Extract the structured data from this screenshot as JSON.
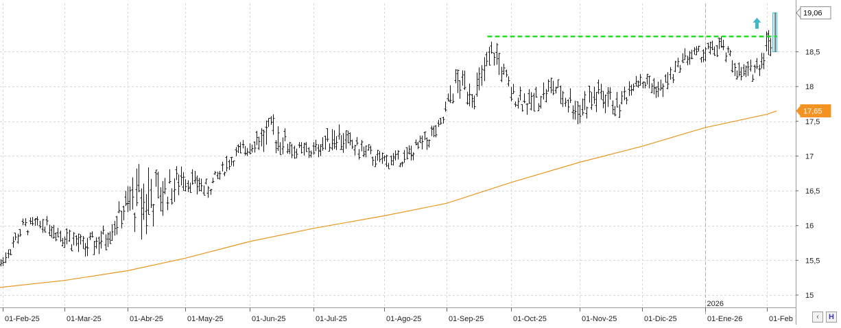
{
  "chart_data": {
    "type": "bar",
    "subtype": "ohlc",
    "ylim": [
      14.84,
      19.22
    ],
    "y_ticks": [
      "15",
      "15,5",
      "16",
      "16,5",
      "17",
      "17,5",
      "18",
      "18,5"
    ],
    "y_tick_values": [
      15,
      15.5,
      16,
      16.5,
      17,
      17.5,
      18,
      18.5
    ],
    "x_labels": [
      "01-Feb-25",
      "01-Mar-25",
      "01-Abr-25",
      "01-May-25",
      "01-Jun-25",
      "01-Jul-25",
      "01-Ago-25",
      "01-Sep-25",
      "01-Oct-25",
      "01-Nov-25",
      "01-Dic-25",
      "01-Ene-26",
      "01-Feb"
    ],
    "x_label_dates": [
      "2025-02-01",
      "2025-03-01",
      "2025-04-01",
      "2025-05-01",
      "2025-06-01",
      "2025-07-01",
      "2025-08-01",
      "2025-09-01",
      "2025-10-01",
      "2025-11-01",
      "2025-12-01",
      "2026-01-01",
      "2026-02-01"
    ],
    "year_marker": {
      "label": "2026",
      "date": "2026-01-01"
    },
    "grid": true,
    "price_series": [
      {
        "date": "2025-01-31",
        "low": 15.35,
        "high": 15.55
      },
      {
        "date": "2025-02-10",
        "low": 15.85,
        "high": 16.1
      },
      {
        "date": "2025-02-20",
        "low": 15.9,
        "high": 16.15
      },
      {
        "date": "2025-02-28",
        "low": 15.7,
        "high": 16.05
      },
      {
        "date": "2025-03-10",
        "low": 15.55,
        "high": 15.85
      },
      {
        "date": "2025-03-20",
        "low": 15.6,
        "high": 16.0
      },
      {
        "date": "2025-03-31",
        "low": 16.05,
        "high": 16.5
      },
      {
        "date": "2025-04-08",
        "low": 15.8,
        "high": 16.95
      },
      {
        "date": "2025-04-18",
        "low": 16.1,
        "high": 16.75
      },
      {
        "date": "2025-04-30",
        "low": 16.5,
        "high": 16.9
      },
      {
        "date": "2025-05-12",
        "low": 16.4,
        "high": 16.65
      },
      {
        "date": "2025-05-22",
        "low": 16.8,
        "high": 17.05
      },
      {
        "date": "2025-06-02",
        "low": 17.05,
        "high": 17.35
      },
      {
        "date": "2025-06-12",
        "low": 17.05,
        "high": 17.6
      },
      {
        "date": "2025-06-23",
        "low": 16.95,
        "high": 17.2
      },
      {
        "date": "2025-07-01",
        "low": 16.95,
        "high": 17.2
      },
      {
        "date": "2025-07-10",
        "low": 17.1,
        "high": 17.5
      },
      {
        "date": "2025-07-21",
        "low": 16.95,
        "high": 17.25
      },
      {
        "date": "2025-07-31",
        "low": 16.8,
        "high": 17.05
      },
      {
        "date": "2025-08-11",
        "low": 16.85,
        "high": 17.1
      },
      {
        "date": "2025-08-21",
        "low": 17.05,
        "high": 17.35
      },
      {
        "date": "2025-08-29",
        "low": 17.3,
        "high": 17.55
      },
      {
        "date": "2025-09-05",
        "low": 17.85,
        "high": 18.25
      },
      {
        "date": "2025-09-15",
        "low": 17.65,
        "high": 18.2
      },
      {
        "date": "2025-09-23",
        "low": 18.3,
        "high": 18.72
      },
      {
        "date": "2025-10-01",
        "low": 17.75,
        "high": 18.05
      },
      {
        "date": "2025-10-10",
        "low": 17.55,
        "high": 17.95
      },
      {
        "date": "2025-10-20",
        "low": 17.85,
        "high": 18.15
      },
      {
        "date": "2025-10-31",
        "low": 17.45,
        "high": 17.9
      },
      {
        "date": "2025-11-10",
        "low": 17.65,
        "high": 18.1
      },
      {
        "date": "2025-11-20",
        "low": 17.55,
        "high": 17.9
      },
      {
        "date": "2025-11-28",
        "low": 18.0,
        "high": 18.25
      },
      {
        "date": "2025-12-10",
        "low": 17.8,
        "high": 18.1
      },
      {
        "date": "2025-12-22",
        "low": 18.3,
        "high": 18.55
      },
      {
        "date": "2025-12-31",
        "low": 18.35,
        "high": 18.6
      },
      {
        "date": "2026-01-09",
        "low": 18.45,
        "high": 18.72
      },
      {
        "date": "2026-01-19",
        "low": 18.0,
        "high": 18.3
      },
      {
        "date": "2026-01-27",
        "low": 18.1,
        "high": 18.45
      },
      {
        "date": "2026-02-04",
        "low": 18.45,
        "high": 19.06
      }
    ],
    "moving_average": {
      "color": "#e8961e",
      "points": [
        {
          "date": "2025-01-25",
          "value": 15.09
        },
        {
          "date": "2025-03-01",
          "value": 15.21
        },
        {
          "date": "2025-04-01",
          "value": 15.35
        },
        {
          "date": "2025-05-01",
          "value": 15.53
        },
        {
          "date": "2025-06-01",
          "value": 15.77
        },
        {
          "date": "2025-07-01",
          "value": 15.96
        },
        {
          "date": "2025-08-01",
          "value": 16.14
        },
        {
          "date": "2025-09-01",
          "value": 16.32
        },
        {
          "date": "2025-10-01",
          "value": 16.62
        },
        {
          "date": "2025-11-01",
          "value": 16.91
        },
        {
          "date": "2025-12-01",
          "value": 17.14
        },
        {
          "date": "2026-01-01",
          "value": 17.41
        },
        {
          "date": "2026-02-01",
          "value": 17.6
        },
        {
          "date": "2026-02-06",
          "value": 17.65
        }
      ]
    },
    "resistance_line": {
      "value": 18.72,
      "from": "2025-09-20",
      "to": "2026-02-06",
      "color": "#22dd22",
      "style": "dashed"
    },
    "breakout_arrow": {
      "date": "2026-01-27",
      "value": 18.9,
      "direction": "up",
      "color": "#3fb7c9"
    },
    "breakout_bar": {
      "date": "2026-02-05",
      "low": 18.5,
      "high": 19.06,
      "color": "#3fb7c9"
    },
    "last_price_label": {
      "text": "19,06",
      "value": 19.06,
      "bg": "#ffffff",
      "fg": "#000000"
    },
    "ma_value_label": {
      "text": "17,65",
      "value": 17.65,
      "bg": "#f39322",
      "fg": "#ffffff"
    }
  },
  "scroll_controls": {
    "left_button": "‹",
    "right_button": "H",
    "left_icon": "chevron-left-icon",
    "right_icon": "h-icon"
  },
  "colors": {
    "grid": "#d8d8d8",
    "price": "#111111",
    "axis_text": "#222222",
    "panel_bg": "#ffffff"
  }
}
